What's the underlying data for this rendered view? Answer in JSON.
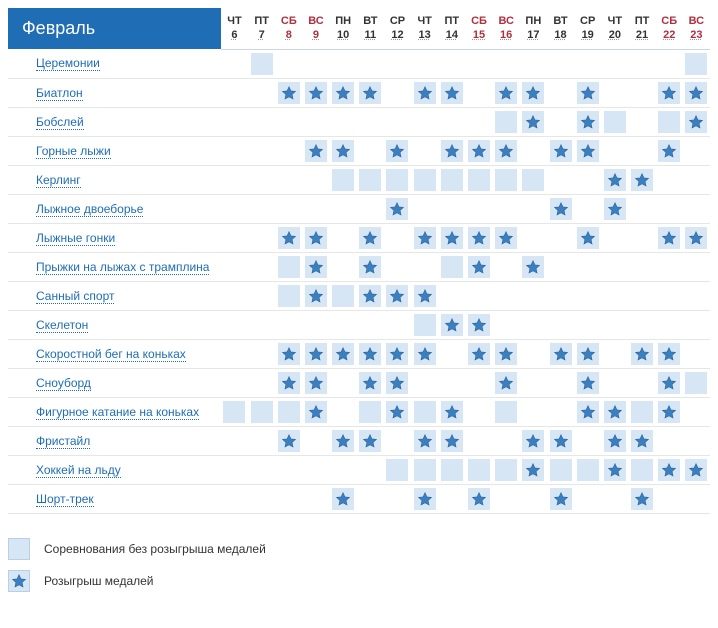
{
  "month_label": "Февраль",
  "days": [
    {
      "dow": "ЧТ",
      "num": "6",
      "weekend": false
    },
    {
      "dow": "ПТ",
      "num": "7",
      "weekend": false
    },
    {
      "dow": "СБ",
      "num": "8",
      "weekend": true
    },
    {
      "dow": "ВС",
      "num": "9",
      "weekend": true
    },
    {
      "dow": "ПН",
      "num": "10",
      "weekend": false
    },
    {
      "dow": "ВТ",
      "num": "11",
      "weekend": false
    },
    {
      "dow": "СР",
      "num": "12",
      "weekend": false
    },
    {
      "dow": "ЧТ",
      "num": "13",
      "weekend": false
    },
    {
      "dow": "ПТ",
      "num": "14",
      "weekend": false
    },
    {
      "dow": "СБ",
      "num": "15",
      "weekend": true
    },
    {
      "dow": "ВС",
      "num": "16",
      "weekend": true
    },
    {
      "dow": "ПН",
      "num": "17",
      "weekend": false
    },
    {
      "dow": "ВТ",
      "num": "18",
      "weekend": false
    },
    {
      "dow": "СР",
      "num": "19",
      "weekend": false
    },
    {
      "dow": "ЧТ",
      "num": "20",
      "weekend": false
    },
    {
      "dow": "ПТ",
      "num": "21",
      "weekend": false
    },
    {
      "dow": "СБ",
      "num": "22",
      "weekend": true
    },
    {
      "dow": "ВС",
      "num": "23",
      "weekend": true
    }
  ],
  "sports": [
    {
      "name": "Церемонии",
      "cells": [
        "",
        "c",
        "",
        "",
        "",
        "",
        "",
        "",
        "",
        "",
        "",
        "",
        "",
        "",
        "",
        "",
        "",
        "c"
      ]
    },
    {
      "name": "Биатлон",
      "cells": [
        "",
        "",
        "m",
        "m",
        "m",
        "m",
        "",
        "m",
        "m",
        "",
        "m",
        "m",
        "",
        "m",
        "",
        "",
        "m",
        "m"
      ]
    },
    {
      "name": "Бобслей",
      "cells": [
        "",
        "",
        "",
        "",
        "",
        "",
        "",
        "",
        "",
        "",
        "c",
        "m",
        "",
        "m",
        "c",
        "",
        "c",
        "m"
      ]
    },
    {
      "name": "Горные лыжи",
      "cells": [
        "",
        "",
        "",
        "m",
        "m",
        "",
        "m",
        "",
        "m",
        "m",
        "m",
        "",
        "m",
        "m",
        "",
        "",
        "m",
        ""
      ]
    },
    {
      "name": "Керлинг",
      "cells": [
        "",
        "",
        "",
        "",
        "c",
        "c",
        "c",
        "c",
        "c",
        "c",
        "c",
        "c",
        "",
        "",
        "m",
        "m",
        "",
        ""
      ]
    },
    {
      "name": "Лыжное двоеборье",
      "cells": [
        "",
        "",
        "",
        "",
        "",
        "",
        "m",
        "",
        "",
        "",
        "",
        "",
        "m",
        "",
        "m",
        "",
        "",
        ""
      ]
    },
    {
      "name": "Лыжные гонки",
      "cells": [
        "",
        "",
        "m",
        "m",
        "",
        "m",
        "",
        "m",
        "m",
        "m",
        "m",
        "",
        "",
        "m",
        "",
        "",
        "m",
        "m"
      ]
    },
    {
      "name": "Прыжки на лыжах с трамплина",
      "cells": [
        "",
        "",
        "c",
        "m",
        "",
        "m",
        "",
        "",
        "c",
        "m",
        "",
        "m",
        "",
        "",
        "",
        "",
        "",
        ""
      ]
    },
    {
      "name": "Санный спорт",
      "cells": [
        "",
        "",
        "c",
        "m",
        "c",
        "m",
        "m",
        "m",
        "",
        "",
        "",
        "",
        "",
        "",
        "",
        "",
        "",
        ""
      ]
    },
    {
      "name": "Скелетон",
      "cells": [
        "",
        "",
        "",
        "",
        "",
        "",
        "",
        "c",
        "m",
        "m",
        "",
        "",
        "",
        "",
        "",
        "",
        "",
        ""
      ]
    },
    {
      "name": "Скоростной бег на коньках",
      "cells": [
        "",
        "",
        "m",
        "m",
        "m",
        "m",
        "m",
        "m",
        "",
        "m",
        "m",
        "",
        "m",
        "m",
        "",
        "m",
        "m",
        ""
      ]
    },
    {
      "name": "Сноуборд",
      "cells": [
        "",
        "",
        "m",
        "m",
        "",
        "m",
        "m",
        "",
        "",
        "",
        "m",
        "",
        "",
        "m",
        "",
        "",
        "m",
        "c"
      ]
    },
    {
      "name": "Фигурное катание на коньках",
      "cells": [
        "c",
        "c",
        "c",
        "m",
        "",
        "c",
        "m",
        "c",
        "m",
        "",
        "c",
        "",
        "",
        "m",
        "m",
        "c",
        "m",
        ""
      ]
    },
    {
      "name": "Фристайл",
      "cells": [
        "",
        "",
        "m",
        "",
        "m",
        "m",
        "",
        "m",
        "m",
        "",
        "",
        "m",
        "m",
        "",
        "m",
        "m",
        "",
        ""
      ]
    },
    {
      "name": "Хоккей на льду",
      "cells": [
        "",
        "",
        "",
        "",
        "",
        "",
        "c",
        "c",
        "c",
        "c",
        "c",
        "m",
        "c",
        "c",
        "m",
        "c",
        "m",
        "m"
      ]
    },
    {
      "name": "Шорт-трек",
      "cells": [
        "",
        "",
        "",
        "",
        "m",
        "",
        "",
        "m",
        "",
        "m",
        "",
        "",
        "m",
        "",
        "",
        "m",
        "",
        ""
      ]
    }
  ],
  "legend": {
    "comp": "Соревнования без розыгрыша медалей",
    "medal": "Розыгрыш медалей"
  },
  "colors": {
    "cell_bg": "#d6e6f5",
    "star_fill": "#3a7fbf",
    "link": "#1e6db5"
  }
}
